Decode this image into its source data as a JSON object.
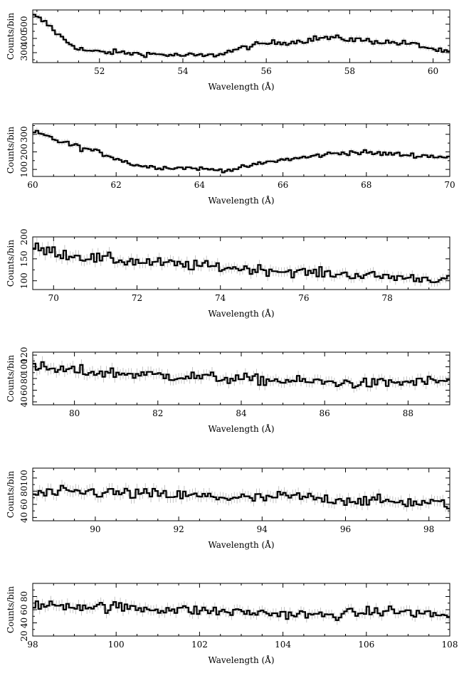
{
  "chart_data": [
    {
      "type": "line",
      "xlabel": "Wavelength (Å)",
      "ylabel": "Counts/bin",
      "xlim": [
        50.4,
        60.4
      ],
      "ylim": [
        230,
        600
      ],
      "xticks": [
        52,
        54,
        56,
        58,
        60
      ],
      "yticks": [
        300,
        400,
        500
      ],
      "x": [
        50.4,
        50.6,
        50.8,
        51.0,
        51.2,
        51.4,
        51.6,
        51.8,
        52.0,
        52.2,
        52.4,
        52.6,
        52.8,
        53.0,
        53.2,
        53.4,
        53.6,
        53.8,
        54.0,
        54.2,
        54.4,
        54.6,
        54.8,
        55.0,
        55.2,
        55.4,
        55.6,
        55.8,
        56.0,
        56.2,
        56.4,
        56.6,
        56.8,
        57.0,
        57.2,
        57.4,
        57.6,
        57.8,
        58.0,
        58.2,
        58.4,
        58.6,
        58.8,
        59.0,
        59.2,
        59.4,
        59.6,
        59.8,
        60.0,
        60.2,
        60.4
      ],
      "y": [
        560,
        530,
        490,
        430,
        380,
        345,
        320,
        310,
        305,
        300,
        305,
        298,
        295,
        290,
        292,
        288,
        285,
        282,
        280,
        282,
        280,
        278,
        285,
        300,
        315,
        330,
        345,
        355,
        365,
        370,
        372,
        375,
        380,
        390,
        400,
        405,
        402,
        398,
        395,
        390,
        385,
        380,
        375,
        372,
        368,
        365,
        355,
        340,
        325,
        310,
        300
      ]
    },
    {
      "type": "line",
      "xlabel": "Wavelength (Å)",
      "ylabel": "Counts/bin",
      "xlim": [
        60,
        70
      ],
      "ylim": [
        60,
        360
      ],
      "xticks": [
        60,
        62,
        64,
        66,
        68,
        70
      ],
      "yticks": [
        100,
        200,
        300
      ],
      "x": [
        60.0,
        60.2,
        60.4,
        60.6,
        60.8,
        61.0,
        61.2,
        61.4,
        61.6,
        61.8,
        62.0,
        62.2,
        62.4,
        62.6,
        62.8,
        63.0,
        63.2,
        63.4,
        63.6,
        63.8,
        64.0,
        64.2,
        64.4,
        64.6,
        64.8,
        65.0,
        65.2,
        65.4,
        65.6,
        65.8,
        66.0,
        66.2,
        66.4,
        66.6,
        66.8,
        67.0,
        67.2,
        67.4,
        67.6,
        67.8,
        68.0,
        68.2,
        68.4,
        68.6,
        68.8,
        69.0,
        69.2,
        69.4,
        69.6,
        69.8,
        70.0
      ],
      "y": [
        310,
        300,
        280,
        265,
        250,
        235,
        220,
        210,
        195,
        180,
        165,
        145,
        130,
        120,
        115,
        112,
        110,
        108,
        110,
        108,
        105,
        100,
        98,
        95,
        100,
        110,
        120,
        130,
        140,
        148,
        155,
        160,
        165,
        170,
        178,
        185,
        190,
        195,
        198,
        196,
        195,
        192,
        190,
        188,
        185,
        182,
        180,
        178,
        175,
        172,
        170
      ]
    },
    {
      "type": "line",
      "xlabel": "Wavelength (Å)",
      "ylabel": "Counts/bin",
      "xlim": [
        69.5,
        79.5
      ],
      "ylim": [
        80,
        200
      ],
      "xticks": [
        70,
        72,
        74,
        76,
        78
      ],
      "yticks": [
        100,
        150,
        200
      ],
      "x": [
        69.5,
        69.7,
        69.9,
        70.1,
        70.3,
        70.5,
        70.7,
        70.9,
        71.1,
        71.3,
        71.5,
        71.7,
        71.9,
        72.1,
        72.3,
        72.5,
        72.7,
        72.9,
        73.1,
        73.3,
        73.5,
        73.7,
        73.9,
        74.1,
        74.3,
        74.5,
        74.7,
        74.9,
        75.1,
        75.3,
        75.5,
        75.7,
        75.9,
        76.1,
        76.3,
        76.5,
        76.7,
        76.9,
        77.1,
        77.3,
        77.5,
        77.7,
        77.9,
        78.1,
        78.3,
        78.5,
        78.7,
        78.9,
        79.1,
        79.3,
        79.5
      ],
      "y": [
        175,
        170,
        168,
        165,
        160,
        158,
        155,
        152,
        150,
        150,
        148,
        145,
        145,
        143,
        142,
        140,
        140,
        138,
        136,
        135,
        135,
        133,
        132,
        130,
        130,
        128,
        127,
        126,
        125,
        124,
        122,
        121,
        120,
        119,
        118,
        117,
        116,
        115,
        114,
        113,
        112,
        111,
        110,
        109,
        108,
        107,
        106,
        105,
        104,
        103,
        102
      ]
    },
    {
      "type": "line",
      "xlabel": "Wavelength (Å)",
      "ylabel": "Counts/bin",
      "xlim": [
        79,
        89
      ],
      "ylim": [
        35,
        125
      ],
      "xticks": [
        80,
        82,
        84,
        86,
        88
      ],
      "yticks": [
        40,
        60,
        80,
        100,
        120
      ],
      "x": [
        79.0,
        79.2,
        79.4,
        79.6,
        79.8,
        80.0,
        80.2,
        80.4,
        80.6,
        80.8,
        81.0,
        81.2,
        81.4,
        81.6,
        81.8,
        82.0,
        82.2,
        82.4,
        82.6,
        82.8,
        83.0,
        83.2,
        83.4,
        83.6,
        83.8,
        84.0,
        84.2,
        84.4,
        84.6,
        84.8,
        85.0,
        85.2,
        85.4,
        85.6,
        85.8,
        86.0,
        86.2,
        86.4,
        86.6,
        86.8,
        87.0,
        87.2,
        87.4,
        87.6,
        87.8,
        88.0,
        88.2,
        88.4,
        88.6,
        88.8,
        89.0
      ],
      "y": [
        100,
        98,
        96,
        95,
        94,
        93,
        92,
        91,
        90,
        90,
        89,
        88,
        88,
        87,
        86,
        86,
        85,
        84,
        84,
        83,
        83,
        82,
        81,
        80,
        80,
        79,
        79,
        78,
        77,
        77,
        76,
        76,
        75,
        75,
        74,
        74,
        73,
        73,
        72,
        72,
        71,
        72,
        72,
        73,
        73,
        74,
        74,
        75,
        75,
        76,
        76
      ]
    },
    {
      "type": "line",
      "xlabel": "Wavelength (Å)",
      "ylabel": "Counts/bin",
      "xlim": [
        88.5,
        98.5
      ],
      "ylim": [
        35,
        115
      ],
      "xticks": [
        90,
        92,
        94,
        96,
        98
      ],
      "yticks": [
        40,
        60,
        80,
        100
      ],
      "x": [
        88.5,
        88.7,
        88.9,
        89.1,
        89.3,
        89.5,
        89.7,
        89.9,
        90.1,
        90.3,
        90.5,
        90.7,
        90.9,
        91.1,
        91.3,
        91.5,
        91.7,
        91.9,
        92.1,
        92.3,
        92.5,
        92.7,
        92.9,
        93.1,
        93.3,
        93.5,
        93.7,
        93.9,
        94.1,
        94.3,
        94.5,
        94.7,
        94.9,
        95.1,
        95.3,
        95.5,
        95.7,
        95.9,
        96.1,
        96.3,
        96.5,
        96.7,
        96.9,
        97.1,
        97.3,
        97.5,
        97.7,
        97.9,
        98.1,
        98.3,
        98.5
      ],
      "y": [
        75,
        76,
        77,
        77,
        78,
        78,
        79,
        79,
        78,
        78,
        77,
        77,
        76,
        76,
        75,
        75,
        74,
        74,
        73,
        73,
        72,
        72,
        71,
        71,
        70,
        70,
        69,
        69,
        70,
        71,
        72,
        72,
        71,
        70,
        69,
        68,
        68,
        67,
        67,
        66,
        66,
        65,
        65,
        64,
        64,
        63,
        63,
        62,
        62,
        61,
        61
      ]
    },
    {
      "type": "line",
      "xlabel": "Wavelength (Å)",
      "ylabel": "Counts/bin",
      "xlim": [
        98,
        108
      ],
      "ylim": [
        20,
        100
      ],
      "xticks": [
        98,
        100,
        102,
        104,
        106,
        108
      ],
      "yticks": [
        20,
        40,
        60,
        80
      ],
      "x": [
        98.0,
        98.2,
        98.4,
        98.6,
        98.8,
        99.0,
        99.2,
        99.4,
        99.6,
        99.8,
        100.0,
        100.2,
        100.4,
        100.6,
        100.8,
        101.0,
        101.2,
        101.4,
        101.6,
        101.8,
        102.0,
        102.2,
        102.4,
        102.6,
        102.8,
        103.0,
        103.2,
        103.4,
        103.6,
        103.8,
        104.0,
        104.2,
        104.4,
        104.6,
        104.8,
        105.0,
        105.2,
        105.4,
        105.6,
        105.8,
        106.0,
        106.2,
        106.4,
        106.6,
        106.8,
        107.0,
        107.2,
        107.4,
        107.6,
        107.8,
        108.0
      ],
      "y": [
        65,
        66,
        66,
        67,
        67,
        66,
        66,
        65,
        65,
        64,
        64,
        63,
        63,
        62,
        62,
        61,
        61,
        60,
        60,
        59,
        59,
        58,
        58,
        57,
        57,
        56,
        56,
        55,
        55,
        54,
        54,
        53,
        53,
        52,
        52,
        51,
        52,
        53,
        54,
        55,
        56,
        57,
        58,
        58,
        57,
        56,
        55,
        54,
        53,
        52,
        51
      ]
    }
  ]
}
